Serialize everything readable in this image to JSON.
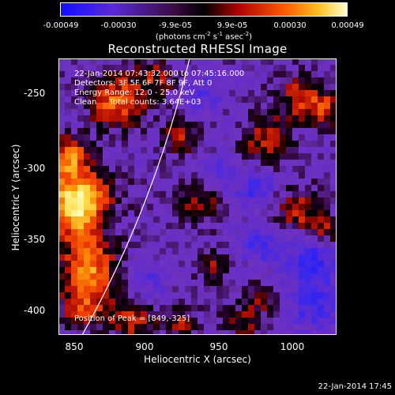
{
  "colorbar": {
    "tick_labels": [
      "-0.00049",
      "-0.00030",
      "-9.9e-05",
      "9.9e-05",
      "0.00030",
      "0.00049"
    ],
    "units_text": "(photons cm",
    "units_exp1": "-2",
    "units_mid": " s",
    "units_exp2": "-1",
    "units_mid2": " asec",
    "units_exp3": "-2",
    "units_end": ")"
  },
  "plot": {
    "title": "Reconstructed RHESSI Image",
    "time_range": "22-Jan-2014 07:43:32.000 to 07:45:16.000",
    "detectors": "Detectors: 3F 5F 6F 7F 8F 9F, Att 0",
    "energy": "Energy Range: 12.0 - 25.0 keV",
    "method": "Clean     Total counts: 3.64E+03",
    "peak": "Position of Peak = [849,-325]",
    "xlabel": "Heliocentric X (arcsec)",
    "ylabel": "Heliocentric Y (arcsec)",
    "xticks": [
      "850",
      "900",
      "950",
      "1000"
    ],
    "yticks": [
      "-250",
      "-300",
      "-350",
      "-400"
    ]
  },
  "timestamp": "22-Jan-2014 17:45",
  "colors": {
    "background": "#000000",
    "text": "#ffffff",
    "colormap": [
      "#0000ff",
      "#6a2bd6",
      "#000000",
      "#d01000",
      "#ff7a00",
      "#ffffb0"
    ]
  }
}
